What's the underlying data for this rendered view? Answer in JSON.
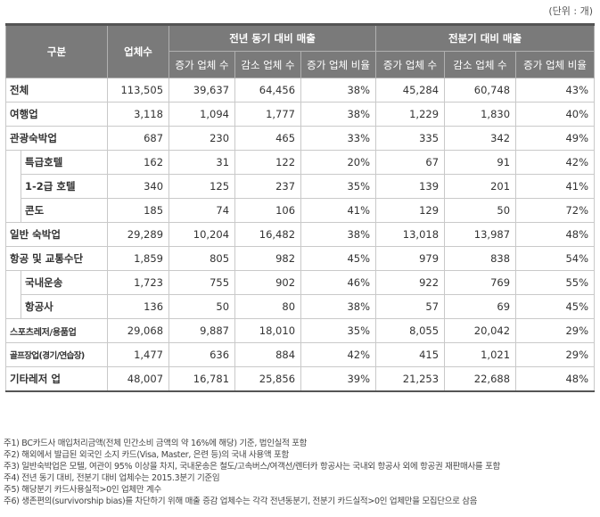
{
  "unit_label": "(단위 : 개)",
  "header": {
    "category": "구분",
    "businesses": "업체수",
    "group_yoy": "전년 동기 대비 매출",
    "group_qoq": "전분기 대비 매출",
    "inc": "증가 업체 수",
    "dec": "감소 업체 수",
    "ratio": "증가 업체 비율"
  },
  "rows": [
    {
      "label": "전체",
      "total": "113,505",
      "yoy_inc": "39,637",
      "yoy_dec": "64,456",
      "yoy_ratio": "38%",
      "qoq_inc": "45,284",
      "qoq_dec": "60,748",
      "qoq_ratio": "43%"
    },
    {
      "label": "여행업",
      "total": "3,118",
      "yoy_inc": "1,094",
      "yoy_dec": "1,777",
      "yoy_ratio": "38%",
      "qoq_inc": "1,229",
      "qoq_dec": "1,830",
      "qoq_ratio": "40%"
    },
    {
      "label": "관광숙박업",
      "total": "687",
      "yoy_inc": "230",
      "yoy_dec": "465",
      "yoy_ratio": "33%",
      "qoq_inc": "335",
      "qoq_dec": "342",
      "qoq_ratio": "49%"
    },
    {
      "label": "특급호텔",
      "total": "162",
      "yoy_inc": "31",
      "yoy_dec": "122",
      "yoy_ratio": "20%",
      "qoq_inc": "67",
      "qoq_dec": "91",
      "qoq_ratio": "42%"
    },
    {
      "label": "1-2급 호텔",
      "total": "340",
      "yoy_inc": "125",
      "yoy_dec": "237",
      "yoy_ratio": "35%",
      "qoq_inc": "139",
      "qoq_dec": "201",
      "qoq_ratio": "41%"
    },
    {
      "label": "콘도",
      "total": "185",
      "yoy_inc": "74",
      "yoy_dec": "106",
      "yoy_ratio": "41%",
      "qoq_inc": "129",
      "qoq_dec": "50",
      "qoq_ratio": "72%"
    },
    {
      "label": "일반 숙박업",
      "total": "29,289",
      "yoy_inc": "10,204",
      "yoy_dec": "16,482",
      "yoy_ratio": "38%",
      "qoq_inc": "13,018",
      "qoq_dec": "13,987",
      "qoq_ratio": "48%"
    },
    {
      "label": "항공 및 교통수단",
      "total": "1,859",
      "yoy_inc": "805",
      "yoy_dec": "982",
      "yoy_ratio": "45%",
      "qoq_inc": "979",
      "qoq_dec": "838",
      "qoq_ratio": "54%"
    },
    {
      "label": "국내운송",
      "total": "1,723",
      "yoy_inc": "755",
      "yoy_dec": "902",
      "yoy_ratio": "46%",
      "qoq_inc": "922",
      "qoq_dec": "769",
      "qoq_ratio": "55%"
    },
    {
      "label": "항공사",
      "total": "136",
      "yoy_inc": "50",
      "yoy_dec": "80",
      "yoy_ratio": "38%",
      "qoq_inc": "57",
      "qoq_dec": "69",
      "qoq_ratio": "45%"
    },
    {
      "label": "스포츠레저/용품업",
      "total": "29,068",
      "yoy_inc": "9,887",
      "yoy_dec": "18,010",
      "yoy_ratio": "35%",
      "qoq_inc": "8,055",
      "qoq_dec": "20,042",
      "qoq_ratio": "29%"
    },
    {
      "label": "골프장업(경기/연습장)",
      "total": "1,477",
      "yoy_inc": "636",
      "yoy_dec": "884",
      "yoy_ratio": "42%",
      "qoq_inc": "415",
      "qoq_dec": "1,021",
      "qoq_ratio": "29%"
    },
    {
      "label": "기타레저 업",
      "total": "48,007",
      "yoy_inc": "16,781",
      "yoy_dec": "25,856",
      "yoy_ratio": "39%",
      "qoq_inc": "21,253",
      "qoq_dec": "22,688",
      "qoq_ratio": "48%"
    }
  ],
  "notes": [
    "주1) BC카드사 매입처리금액(전체 민간소비 금액의 약 16%에 해당) 기준, 법인실적 포함",
    "주2) 해외에서 발급된 외국인 소지 카드(Visa, Master, 은련 등)의 국내 사용액 포함",
    "주3) 일반숙박업은 모텔, 여관이 95% 이상을 차지, 국내운송은 철도/고속버스/여객선/렌터카 항공사는 국내외 항공사 외에 항공권 재판매사를 포함",
    "주4) 전년 동기 대비, 전분기 대비 업체수는 2015.3분기 기준임",
    "주5) 해당분기 카드사용실적>0인 업체만 계수",
    "주6) 생존편의(survivorship bias)를 차단하기 위해 매출 증감 업체수는 각각 전년동분기, 전분기 카드실적>0인 업체만을 모집단으로 삼음"
  ]
}
